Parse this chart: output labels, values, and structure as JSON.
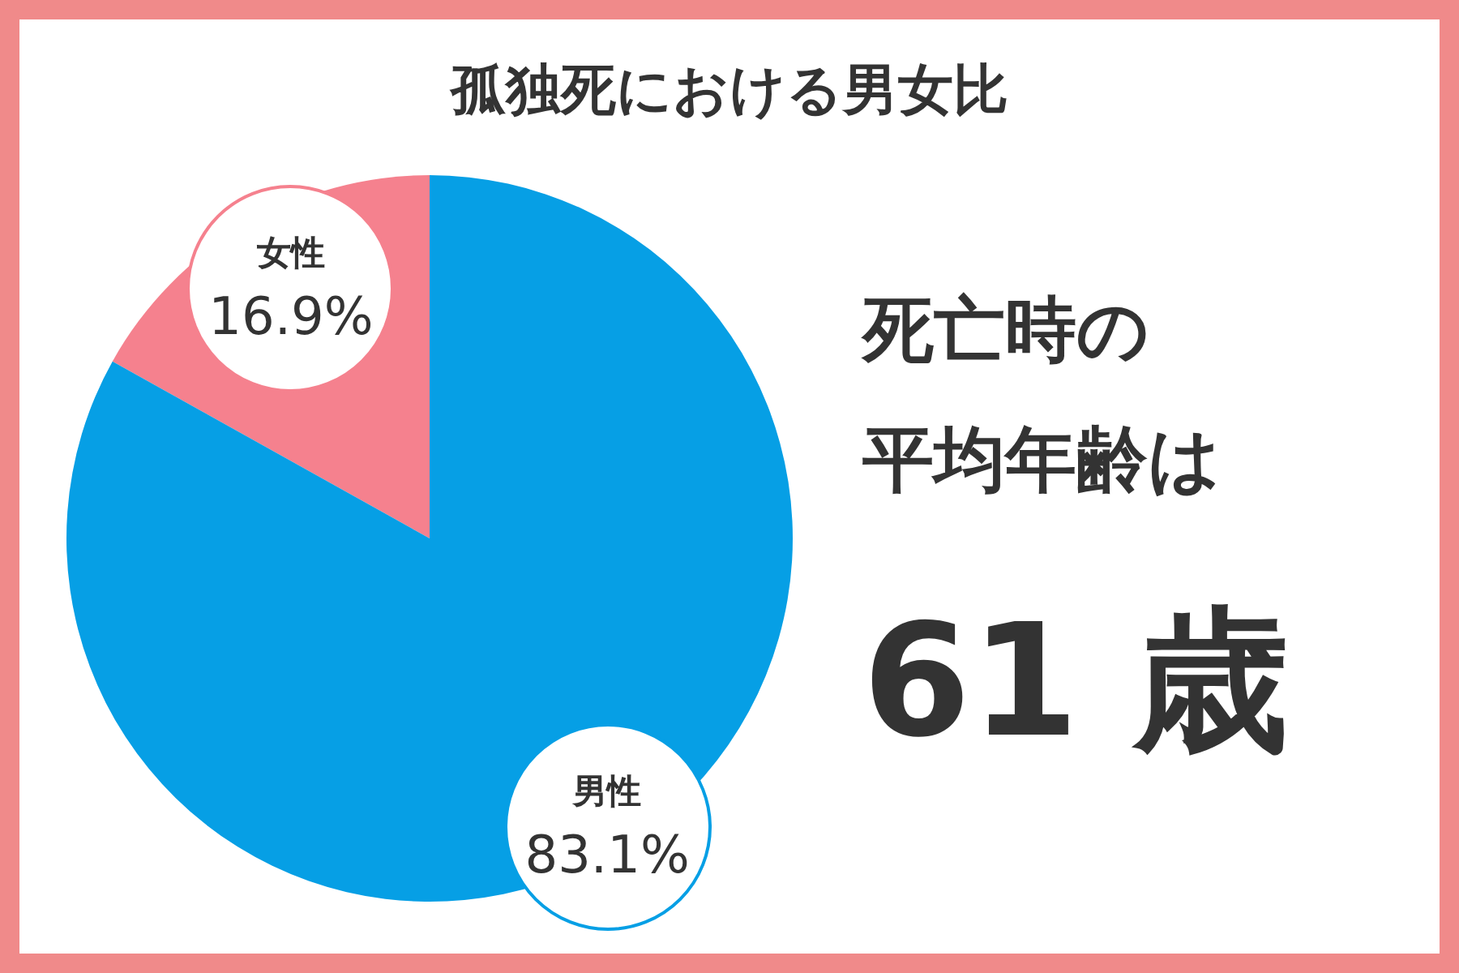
{
  "chart_data": {
    "type": "pie",
    "title": "孤独死における男女比",
    "categories": [
      "女性",
      "男性"
    ],
    "values": [
      16.9,
      83.1
    ],
    "value_labels": [
      "16.9%",
      "83.1%"
    ],
    "colors": [
      "#f5818e",
      "#069fe5"
    ],
    "legend": false,
    "annotations": [
      "死亡時の",
      "平均年齢は",
      "61 歳"
    ]
  }
}
